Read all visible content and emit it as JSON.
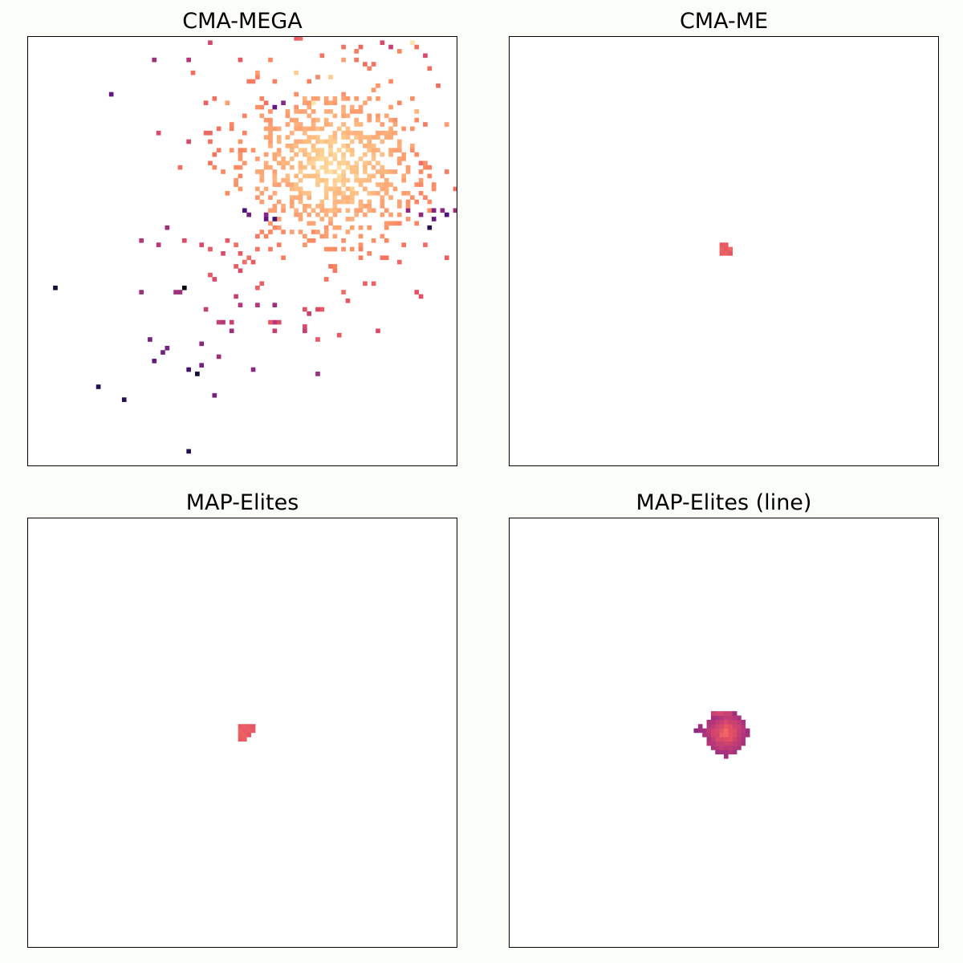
{
  "chart_data": [
    {
      "type": "heatmap",
      "title": "CMA-MEGA",
      "grid": false,
      "xlim": [
        0,
        100
      ],
      "ylim": [
        0,
        100
      ],
      "colormap": "magma",
      "cells": [
        [
          89.5,
          98.5,
          0.05
        ],
        [
          82.5,
          98.5,
          0.4
        ],
        [
          84.5,
          97.5,
          0.45
        ],
        [
          90.5,
          97.5,
          0.3
        ],
        [
          86.5,
          96.5,
          0.25
        ],
        [
          92.5,
          95.5,
          0.4
        ],
        [
          49.5,
          94.5,
          0.35
        ],
        [
          56.5,
          94.5,
          0.25
        ],
        [
          73.5,
          94.5,
          0.2
        ],
        [
          78.5,
          93.5,
          0.3
        ],
        [
          29.5,
          94.5,
          0.55
        ],
        [
          37.5,
          94.5,
          0.5
        ],
        [
          38.5,
          91.5,
          0.3
        ],
        [
          53.5,
          91.5,
          0.2
        ],
        [
          62.5,
          91.5,
          0.1
        ],
        [
          70.5,
          90.5,
          0.1
        ],
        [
          19.5,
          86.5,
          0.7
        ],
        [
          43.5,
          85.5,
          0.3
        ],
        [
          46.5,
          84.5,
          0.2
        ],
        [
          55.5,
          84.5,
          0.3
        ],
        [
          59.5,
          84.5,
          0.6
        ],
        [
          57.5,
          83.5,
          0.7
        ],
        [
          64.5,
          85.5,
          0.15
        ],
        [
          66.5,
          84.5,
          0.05
        ],
        [
          86.5,
          84.5,
          0.25
        ],
        [
          90.5,
          82.5,
          0.15
        ],
        [
          97.5,
          79.5,
          0.2
        ],
        [
          30.5,
          77.5,
          0.4
        ],
        [
          37.5,
          75.5,
          0.4
        ],
        [
          42.5,
          75.5,
          0.3
        ],
        [
          35.5,
          69.5,
          0.3
        ],
        [
          43.5,
          69.5,
          0.25
        ],
        [
          87.5,
          71.5,
          0.2
        ],
        [
          91.5,
          70.5,
          0.3
        ],
        [
          99.5,
          64.5,
          0.3
        ],
        [
          99.5,
          59.5,
          0.55
        ],
        [
          55.5,
          57.5,
          0.7
        ],
        [
          57.5,
          57.5,
          0.78
        ],
        [
          50.5,
          59.5,
          0.75
        ],
        [
          51.5,
          58.5,
          0.65
        ],
        [
          55.5,
          58.5,
          0.6
        ],
        [
          88.5,
          59.5,
          0.6
        ],
        [
          91.5,
          58.5,
          0.58
        ],
        [
          94.5,
          59.5,
          0.62
        ],
        [
          96.5,
          59.5,
          0.6
        ],
        [
          97.5,
          58.5,
          0.75
        ],
        [
          94.5,
          57.5,
          0.7
        ],
        [
          93.5,
          55.5,
          0.85
        ],
        [
          32.5,
          55.5,
          0.55
        ],
        [
          26.5,
          52.5,
          0.5
        ],
        [
          30.5,
          51.5,
          0.5
        ],
        [
          36.5,
          52.5,
          0.4
        ],
        [
          40.5,
          51.5,
          0.4
        ],
        [
          46.5,
          52.5,
          0.35
        ],
        [
          48.5,
          51.5,
          0.3
        ],
        [
          42.5,
          50.5,
          0.35
        ],
        [
          45.5,
          49.5,
          0.4
        ],
        [
          49.5,
          49.5,
          0.35
        ],
        [
          51.5,
          48.5,
          0.3
        ],
        [
          52.5,
          47.5,
          0.35
        ],
        [
          48.5,
          46.5,
          0.35
        ],
        [
          49.5,
          45.5,
          0.4
        ],
        [
          42.5,
          44.5,
          0.35
        ],
        [
          43.5,
          43.5,
          0.4
        ],
        [
          6.5,
          41.5,
          0.9
        ],
        [
          36.5,
          41.5,
          0.97
        ],
        [
          35.5,
          40.5,
          0.55
        ],
        [
          26.5,
          40.5,
          0.55
        ],
        [
          34.5,
          40.5,
          0.55
        ],
        [
          48.5,
          39.5,
          0.45
        ],
        [
          57.5,
          37.5,
          0.55
        ],
        [
          53.5,
          37.5,
          0.5
        ],
        [
          49.5,
          37.5,
          0.5
        ],
        [
          41.5,
          36.5,
          0.45
        ],
        [
          68.5,
          36.5,
          0.35
        ],
        [
          65.5,
          35.5,
          0.45
        ],
        [
          67.5,
          36.5,
          0.4
        ],
        [
          45.5,
          33.5,
          0.5
        ],
        [
          47.5,
          33.5,
          0.45
        ],
        [
          57.5,
          33.5,
          0.5
        ],
        [
          64.5,
          32.5,
          0.4
        ],
        [
          57.5,
          31.5,
          0.45
        ],
        [
          64.5,
          31.5,
          0.45
        ],
        [
          81.5,
          31.5,
          0.4
        ],
        [
          47.5,
          31.5,
          0.55
        ],
        [
          44.5,
          33.5,
          0.45
        ],
        [
          28.5,
          29.5,
          0.65
        ],
        [
          32.5,
          27.5,
          0.65
        ],
        [
          67.5,
          29.5,
          0.35
        ],
        [
          72.5,
          30.5,
          0.35
        ],
        [
          40.5,
          28.5,
          0.6
        ],
        [
          56.5,
          33.5,
          0.35
        ],
        [
          58.5,
          33.5,
          0.4
        ],
        [
          31.5,
          26.5,
          0.65
        ],
        [
          44.5,
          25.5,
          0.55
        ],
        [
          29.5,
          24.5,
          0.7
        ],
        [
          40.5,
          23.5,
          0.65
        ],
        [
          37.5,
          22.5,
          0.78
        ],
        [
          52.5,
          22.5,
          0.6
        ],
        [
          67.5,
          21.5,
          0.55
        ],
        [
          39.5,
          21.5,
          0.9
        ],
        [
          16.5,
          18.5,
          0.85
        ],
        [
          22.5,
          15.5,
          0.85
        ],
        [
          43.5,
          16.5,
          0.65
        ],
        [
          37.5,
          3.5,
          0.85
        ]
      ],
      "cluster": {
        "center": [
          71,
          70
        ],
        "spread": [
          17,
          15
        ],
        "count": 800
      }
    },
    {
      "type": "heatmap",
      "title": "CMA-ME",
      "grid": false,
      "xlim": [
        0,
        100
      ],
      "ylim": [
        0,
        100
      ],
      "colormap": "magma",
      "cells": [
        [
          49.5,
          51.5,
          0.35
        ],
        [
          50.5,
          51.5,
          0.35
        ],
        [
          49.5,
          50.5,
          0.33
        ],
        [
          50.5,
          50.5,
          0.35
        ],
        [
          51.5,
          50.5,
          0.32
        ],
        [
          49.5,
          49.5,
          0.34
        ],
        [
          50.5,
          49.5,
          0.33
        ],
        [
          51.5,
          49.5,
          0.36
        ]
      ]
    },
    {
      "type": "heatmap",
      "title": "MAP-Elites",
      "grid": false,
      "xlim": [
        0,
        100
      ],
      "ylim": [
        0,
        100
      ],
      "colormap": "magma",
      "cells": [
        [
          49.5,
          51.5,
          0.35
        ],
        [
          50.5,
          51.5,
          0.34
        ],
        [
          51.5,
          51.5,
          0.35
        ],
        [
          52.5,
          51.5,
          0.36
        ],
        [
          49.5,
          50.5,
          0.33
        ],
        [
          50.5,
          50.5,
          0.35
        ],
        [
          51.5,
          50.5,
          0.34
        ],
        [
          52.5,
          50.5,
          0.35
        ],
        [
          49.5,
          49.5,
          0.34
        ],
        [
          50.5,
          49.5,
          0.33
        ],
        [
          51.5,
          49.5,
          0.36
        ],
        [
          49.5,
          48.5,
          0.35
        ],
        [
          50.5,
          48.5,
          0.34
        ]
      ]
    },
    {
      "type": "heatmap",
      "title": "MAP-Elites (line)",
      "grid": false,
      "xlim": [
        0,
        100
      ],
      "ylim": [
        0,
        100
      ],
      "colormap": "magma",
      "blob": {
        "center": [
          50.5,
          50.0
        ],
        "radius": [
          5.2,
          5.0
        ]
      },
      "cells": [
        [
          43.5,
          50.5,
          0.6
        ],
        [
          44.5,
          50.5,
          0.55
        ],
        [
          44.5,
          51.5,
          0.55
        ],
        [
          45.5,
          49.5,
          0.52
        ],
        [
          47.5,
          54.5,
          0.45
        ],
        [
          48.5,
          54.5,
          0.42
        ],
        [
          49.5,
          54.5,
          0.42
        ],
        [
          50.5,
          54.5,
          0.45
        ],
        [
          51.5,
          54.5,
          0.45
        ],
        [
          50.5,
          44.5,
          0.55
        ],
        [
          51.5,
          45.5,
          0.5
        ],
        [
          46.5,
          47.5,
          0.5
        ]
      ]
    }
  ]
}
